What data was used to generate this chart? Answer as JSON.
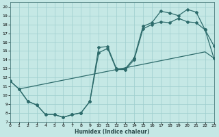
{
  "xlabel": "Humidex (Indice chaleur)",
  "bg_color": "#c5e8e5",
  "grid_color": "#9ecece",
  "line_color": "#2d6b6b",
  "xlim": [
    0,
    23
  ],
  "ylim": [
    7,
    20.5
  ],
  "xticks": [
    0,
    1,
    2,
    3,
    4,
    5,
    6,
    7,
    8,
    9,
    10,
    11,
    12,
    13,
    14,
    15,
    16,
    17,
    18,
    19,
    20,
    21,
    22,
    23
  ],
  "yticks": [
    7,
    8,
    9,
    10,
    11,
    12,
    13,
    14,
    15,
    16,
    17,
    18,
    19,
    20
  ],
  "curve1_x": [
    0,
    1,
    2,
    3,
    4,
    5,
    6,
    7,
    8,
    9,
    10,
    11,
    12,
    13,
    14,
    15,
    16,
    17,
    18,
    19,
    20,
    21,
    22,
    23
  ],
  "curve1_y": [
    11.6,
    10.7,
    9.3,
    8.9,
    7.8,
    7.8,
    7.5,
    7.8,
    8.0,
    9.3,
    15.4,
    15.5,
    13.0,
    13.0,
    14.2,
    17.8,
    18.2,
    19.5,
    19.3,
    19.0,
    19.7,
    19.4,
    17.4,
    15.6
  ],
  "curve2_x": [
    0,
    1,
    2,
    3,
    4,
    5,
    6,
    7,
    8,
    9,
    10,
    11,
    12,
    13,
    14,
    15,
    16,
    17,
    18,
    19,
    20,
    21,
    22,
    23
  ],
  "curve2_y": [
    11.6,
    10.7,
    9.3,
    8.9,
    7.8,
    7.8,
    7.5,
    7.8,
    8.0,
    9.3,
    14.8,
    15.3,
    12.9,
    12.9,
    14.0,
    17.5,
    18.0,
    18.3,
    18.2,
    18.7,
    18.3,
    18.2,
    17.4,
    14.2
  ],
  "curve3_x": [
    1,
    2,
    3,
    4,
    5,
    6,
    7,
    8,
    9,
    10,
    11,
    12,
    13,
    14,
    15,
    16,
    17,
    18,
    19,
    20,
    21,
    22,
    23
  ],
  "curve3_y": [
    10.7,
    10.9,
    11.1,
    11.3,
    11.5,
    11.7,
    11.9,
    12.1,
    12.3,
    12.5,
    12.7,
    12.9,
    13.1,
    13.3,
    13.5,
    13.7,
    13.9,
    14.1,
    14.3,
    14.5,
    14.7,
    14.9,
    14.2
  ]
}
